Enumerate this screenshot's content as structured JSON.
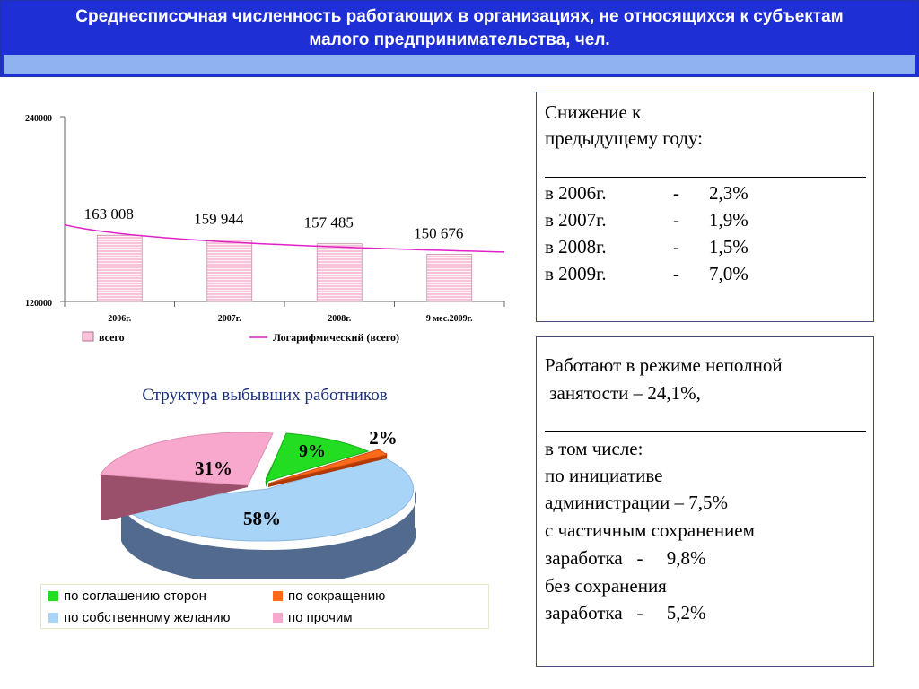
{
  "header": {
    "title_line1": "Среднесписочная численность работающих в организациях, не относящихся к субъектам",
    "title_line2": "малого предпринимательства, чел."
  },
  "colors": {
    "header_bg": "#1f2fd6",
    "header_strip": "#8fb3f0",
    "bar_fill": "#f9c4d9",
    "trend_line": "#e020c8",
    "pie_green": "#22dd22",
    "pie_orange": "#ff6a1a",
    "pie_blue": "#a8d4f8",
    "pie_pink": "#f7a8cc"
  },
  "chart_data": [
    {
      "type": "bar",
      "categories": [
        "2006г.",
        "2007г.",
        "2008г.",
        "9 мес.2009г."
      ],
      "values": [
        163008,
        159944,
        157485,
        150676
      ],
      "value_labels": [
        "163 008",
        "159 944",
        "157 485",
        "150 676"
      ],
      "ylim": [
        120000,
        240000
      ],
      "y_tick_labels": [
        "240000",
        "120000"
      ],
      "series": [
        {
          "name": "всего",
          "values": [
            163008,
            159944,
            157485,
            150676
          ]
        },
        {
          "name": "Логарифмический (всего)",
          "kind": "trendline"
        }
      ],
      "legend_position": "bottom",
      "grid": false
    },
    {
      "type": "pie",
      "title": "Структура выбывших работников",
      "values": [
        9,
        2,
        58,
        31
      ],
      "value_labels": [
        "9%",
        "2%",
        "58%",
        "31%"
      ],
      "categories": [
        "по соглашению сторон",
        "по сокращению",
        "по собственному желанию",
        "по прочим"
      ],
      "style": "3d-exploded",
      "legend_position": "bottom"
    }
  ],
  "box1": {
    "title_line1": "Снижение к",
    "title_line2": "предыдущему году:",
    "rows": [
      {
        "year": "в 2006г.",
        "dash": "-",
        "value": "2,3%"
      },
      {
        "year": "в 2007г.",
        "dash": "-",
        "value": "1,9%"
      },
      {
        "year": "в 2008г.",
        "dash": "-",
        "value": "1,5%"
      },
      {
        "year": "в 2009г.",
        "dash": "-",
        "value": "7,0%"
      }
    ]
  },
  "box2": {
    "line1": "Работают в режиме неполной",
    "line2": " занятости – 24,1%,",
    "line3": "в том числе:",
    "line4": "по инициативе",
    "line5": "администрации – 7,5%",
    "line6": "с частичным сохранением",
    "line7": "заработка   -     9,8%",
    "line8": "без сохранения",
    "line9": "заработка   -     5,2%"
  }
}
